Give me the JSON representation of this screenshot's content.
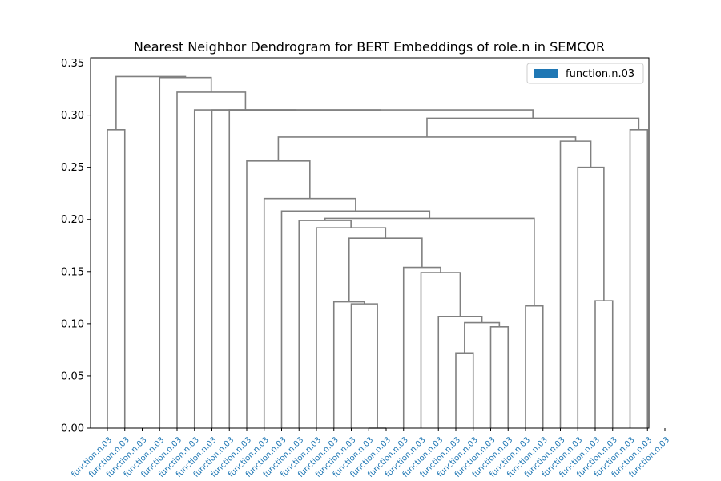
{
  "chart_data": {
    "type": "dendrogram",
    "title": "Nearest Neighbor Dendrogram for BERT Embeddings of role.n in SEMCOR",
    "xlabel": "",
    "ylabel": "",
    "ylim": [
      0,
      0.355
    ],
    "yticks": [
      "0.00",
      "0.05",
      "0.10",
      "0.15",
      "0.20",
      "0.25",
      "0.30",
      "0.35"
    ],
    "ytick_values": [
      0,
      0.05,
      0.1,
      0.15,
      0.2,
      0.25,
      0.3,
      0.35
    ],
    "grid": false,
    "legend": {
      "position": "top-right",
      "entries": [
        {
          "label": "function.n.03",
          "color": "#1f77b4"
        }
      ]
    },
    "line_color": "#808080",
    "leaf_label_color": "#1f77b4",
    "leaves": [
      "function.n.03",
      "function.n.03",
      "function.n.03",
      "function.n.03",
      "function.n.03",
      "function.n.03",
      "function.n.03",
      "function.n.03",
      "function.n.03",
      "function.n.03",
      "function.n.03",
      "function.n.03",
      "function.n.03",
      "function.n.03",
      "function.n.03",
      "function.n.03",
      "function.n.03",
      "function.n.03",
      "function.n.03",
      "function.n.03",
      "function.n.03",
      "function.n.03",
      "function.n.03",
      "function.n.03",
      "function.n.03",
      "function.n.03",
      "function.n.03",
      "function.n.03",
      "function.n.03",
      "function.n.03",
      "function.n.03",
      "function.n.03",
      "function.n.03"
    ],
    "merges": [
      {
        "id": "m_a",
        "left": "L0",
        "right": "L1",
        "height": 0.286
      },
      {
        "id": "m_b",
        "left": "L15",
        "right": "L16",
        "height": 0.0
      },
      {
        "id": "m_c",
        "left": "L20",
        "right": "L21",
        "height": 0.072
      },
      {
        "id": "m_d",
        "left": "L28",
        "right": "L29",
        "height": 0.122
      },
      {
        "id": "m_e",
        "left": "L22",
        "right": "L23",
        "height": 0.097
      },
      {
        "id": "m_f",
        "left": "m_c",
        "right": "m_e",
        "height": 0.101
      },
      {
        "id": "m_g",
        "left": "L19",
        "right": "m_f",
        "height": 0.107
      },
      {
        "id": "m_h",
        "left": "L24",
        "right": "L25",
        "height": 0.117
      },
      {
        "id": "m_i",
        "left": "L14",
        "right": "m_b",
        "height": 0.119
      },
      {
        "id": "m_j",
        "left": "L13",
        "right": "m_i",
        "height": 0.121
      },
      {
        "id": "m_k",
        "left": "L18",
        "right": "m_g",
        "height": 0.149
      },
      {
        "id": "m_l",
        "left": "L17",
        "right": "m_k",
        "height": 0.154
      },
      {
        "id": "m_m",
        "left": "m_j",
        "right": "m_l",
        "height": 0.182
      },
      {
        "id": "m_n",
        "left": "L12",
        "right": "m_m",
        "height": 0.192
      },
      {
        "id": "m_o",
        "left": "L11",
        "right": "m_n",
        "height": 0.199
      },
      {
        "id": "m_p",
        "left": "m_o",
        "right": "m_h",
        "height": 0.201
      },
      {
        "id": "m_q",
        "left": "L10",
        "right": "m_p",
        "height": 0.208
      },
      {
        "id": "m_r",
        "left": "L9",
        "right": "m_q",
        "height": 0.22
      },
      {
        "id": "m_s",
        "left": "L8",
        "right": "m_r",
        "height": 0.256
      },
      {
        "id": "m_t",
        "left": "L27",
        "right": "m_d",
        "height": 0.25
      },
      {
        "id": "m_u",
        "left": "L26",
        "right": "m_t",
        "height": 0.275
      },
      {
        "id": "m_v",
        "left": "m_s",
        "right": "m_u",
        "height": 0.279
      },
      {
        "id": "m_w",
        "left": "L30",
        "right": "L31",
        "height": 0.286
      },
      {
        "id": "m_x",
        "left": "m_v",
        "right": "m_w",
        "height": 0.297
      },
      {
        "id": "m_y",
        "left": "L7",
        "right": "m_x",
        "height": 0.305
      },
      {
        "id": "m_z",
        "left": "L6",
        "right": "m_y",
        "height": 0.305
      },
      {
        "id": "m_aa",
        "left": "L5",
        "right": "m_z",
        "height": 0.305
      },
      {
        "id": "m_ab",
        "left": "L4",
        "right": "m_aa",
        "height": 0.322
      },
      {
        "id": "m_ac",
        "left": "L3",
        "right": "m_ab",
        "height": 0.336
      },
      {
        "id": "m_ad",
        "left": "m_a",
        "right": "m_ac",
        "height": 0.337
      }
    ]
  }
}
